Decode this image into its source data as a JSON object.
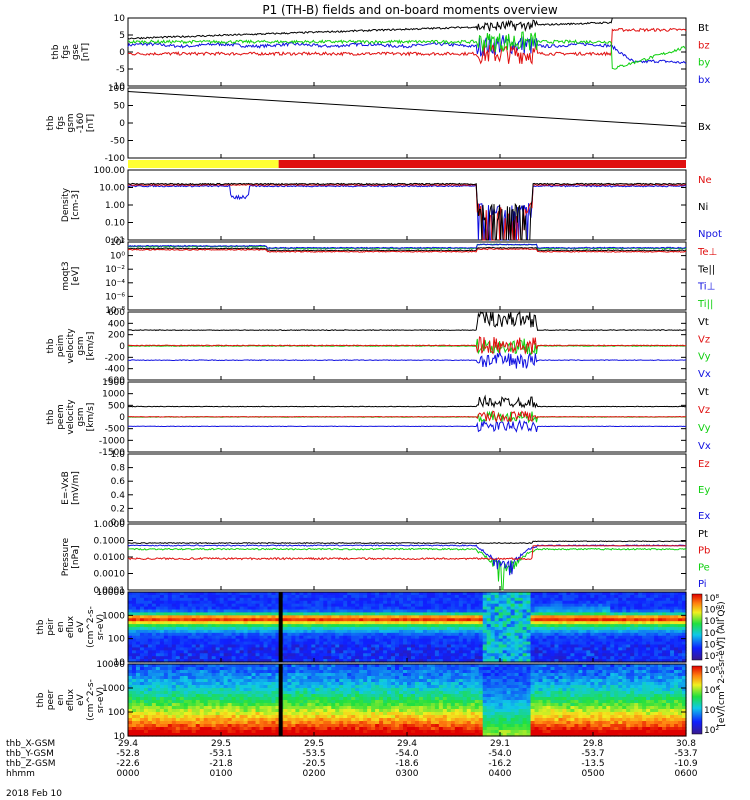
{
  "title": "P1 (TH-B) fields and on-board moments overview",
  "date": "2018 Feb 10",
  "colors": {
    "black": "#000000",
    "red": "#e01010",
    "green": "#10d010",
    "blue": "#1010e0",
    "yellow": "#ffff33",
    "barred": "#ee1111"
  },
  "time_axis": {
    "range": [
      "0000",
      "0600"
    ],
    "rows": [
      {
        "label": "thb_X-GSM",
        "values": [
          "29.4",
          "29.5",
          "29.5",
          "29.4",
          "29.1",
          "29.8",
          "30.8"
        ]
      },
      {
        "label": "thb_Y-GSM",
        "values": [
          "-52.8",
          "-53.1",
          "-53.5",
          "-54.0",
          "-54.0",
          "-53.7",
          "-53.7"
        ]
      },
      {
        "label": "thb_Z-GSM",
        "values": [
          "-22.6",
          "-21.8",
          "-20.5",
          "-18.6",
          "-16.2",
          "-13.5",
          "-10.9"
        ]
      },
      {
        "label": "hhmm",
        "values": [
          "0000",
          "0100",
          "0200",
          "0300",
          "0400",
          "0500",
          "0600"
        ]
      }
    ]
  },
  "colorbar": {
    "label": "[eV/(cm^2-s-sr-eV)] (All Qs)",
    "ticks_ion": [
      "10^2",
      "10^3",
      "10^4",
      "10^5",
      "10^6",
      "10^8"
    ],
    "ticks_elec": [
      "10^2",
      "10^4",
      "10^6",
      "10^8"
    ]
  },
  "chart_data": [
    {
      "type": "line",
      "panel": "fgs",
      "ylabel": [
        "thb",
        "fgs",
        "gse",
        "[nT]"
      ],
      "ylim": [
        -10,
        10
      ],
      "yticks": [
        "10",
        "5",
        "0",
        "-5",
        "-10"
      ],
      "series": [
        {
          "name": "Bt",
          "color": "black"
        },
        {
          "name": "bz",
          "color": "red"
        },
        {
          "name": "by",
          "color": "green"
        },
        {
          "name": "bx",
          "color": "blue"
        }
      ]
    },
    {
      "type": "line",
      "panel": "fgs_x",
      "ylabel": [
        "thb",
        "fgs",
        "gsm",
        "-160",
        "[nT]"
      ],
      "ylim": [
        -130,
        110
      ],
      "yticks": [
        "100",
        "50",
        "0",
        "-50",
        "-100"
      ],
      "series": [
        {
          "name": "Bx",
          "color": "black",
          "x": [
            0,
            6
          ],
          "y": [
            98,
            -22
          ]
        }
      ]
    },
    {
      "type": "bar",
      "panel": "mode_bar",
      "segments": [
        {
          "from": 0.0,
          "to": 1.62,
          "color": "yellow"
        },
        {
          "from": 1.62,
          "to": 6.0,
          "color": "red"
        }
      ]
    },
    {
      "type": "line",
      "panel": "density",
      "scale": "log",
      "ylabel": [
        "Density",
        "[cm-3]"
      ],
      "ylim": [
        0.01,
        100
      ],
      "yticks": [
        "100.00",
        "10.00",
        "1.00",
        "0.10",
        "0.01"
      ],
      "series": [
        {
          "name": "Ne",
          "color": "red"
        },
        {
          "name": "Ni",
          "color": "black"
        },
        {
          "name": "Npot",
          "color": "blue"
        }
      ]
    },
    {
      "type": "line",
      "panel": "temperature",
      "scale": "log",
      "ylabel": [
        "moqt3",
        "[eV]"
      ],
      "yticks": [
        "10^2",
        "10^0",
        "10^-2",
        "10^-4",
        "10^-6",
        "10^-8"
      ],
      "series": [
        {
          "name": "Te⊥",
          "color": "red"
        },
        {
          "name": "Te||",
          "color": "black"
        },
        {
          "name": "Ti⊥",
          "color": "blue"
        },
        {
          "name": "Ti||",
          "color": "green"
        }
      ]
    },
    {
      "type": "line",
      "panel": "ion_velocity",
      "ylabel": [
        "thb",
        "peim",
        "velocity",
        "gsm",
        "[km/s]"
      ],
      "ylim": [
        -600,
        600
      ],
      "yticks": [
        "600",
        "400",
        "200",
        "0",
        "-200",
        "-400",
        "-600"
      ],
      "series": [
        {
          "name": "Vt",
          "color": "black"
        },
        {
          "name": "Vz",
          "color": "red"
        },
        {
          "name": "Vy",
          "color": "green"
        },
        {
          "name": "Vx",
          "color": "blue"
        }
      ]
    },
    {
      "type": "line",
      "panel": "elec_velocity",
      "ylabel": [
        "thb",
        "peem",
        "velocity",
        "gsm",
        "[km/s]"
      ],
      "ylim": [
        -1500,
        1500
      ],
      "yticks": [
        "1500",
        "1000",
        "500",
        "0",
        "-500",
        "-1000",
        "-1500"
      ],
      "series": [
        {
          "name": "Vt",
          "color": "black"
        },
        {
          "name": "Vz",
          "color": "red"
        },
        {
          "name": "Vy",
          "color": "green"
        },
        {
          "name": "Vx",
          "color": "blue"
        }
      ]
    },
    {
      "type": "line",
      "panel": "efield",
      "ylabel": [
        "E=-VxB",
        "[mV/m]"
      ],
      "ylim": [
        0,
        1
      ],
      "yticks": [
        "1.0",
        "0.8",
        "0.6",
        "0.4",
        "0.2",
        "0.0"
      ],
      "series": [
        {
          "name": "Ez",
          "color": "red"
        },
        {
          "name": "Ey",
          "color": "green"
        },
        {
          "name": "Ex",
          "color": "blue"
        }
      ]
    },
    {
      "type": "line",
      "panel": "pressure",
      "scale": "log",
      "ylabel": [
        "Pressure",
        "[nPa]"
      ],
      "ylim": [
        0.0001,
        1
      ],
      "yticks": [
        "1.0000",
        "0.1000",
        "0.0100",
        "0.0010",
        "0.0001"
      ],
      "series": [
        {
          "name": "Pt",
          "color": "black"
        },
        {
          "name": "Pb",
          "color": "red"
        },
        {
          "name": "Pe",
          "color": "green"
        },
        {
          "name": "Pi",
          "color": "blue"
        }
      ]
    },
    {
      "type": "heatmap",
      "panel": "ion_spectrogram",
      "scale": "log",
      "ylabel": [
        "thb",
        "peir",
        "en",
        "eflux",
        "eV",
        "(cm^2-s-",
        "sr-eV)"
      ],
      "yticks": [
        "10000",
        "1000",
        "100",
        "10"
      ]
    },
    {
      "type": "heatmap",
      "panel": "elec_spectrogram",
      "scale": "log",
      "ylabel": [
        "thb",
        "peer",
        "en",
        "eflux",
        "eV",
        "(cm^2-s-",
        "sr-eV)"
      ],
      "yticks": [
        "10000",
        "1000",
        "100",
        "10"
      ]
    }
  ]
}
